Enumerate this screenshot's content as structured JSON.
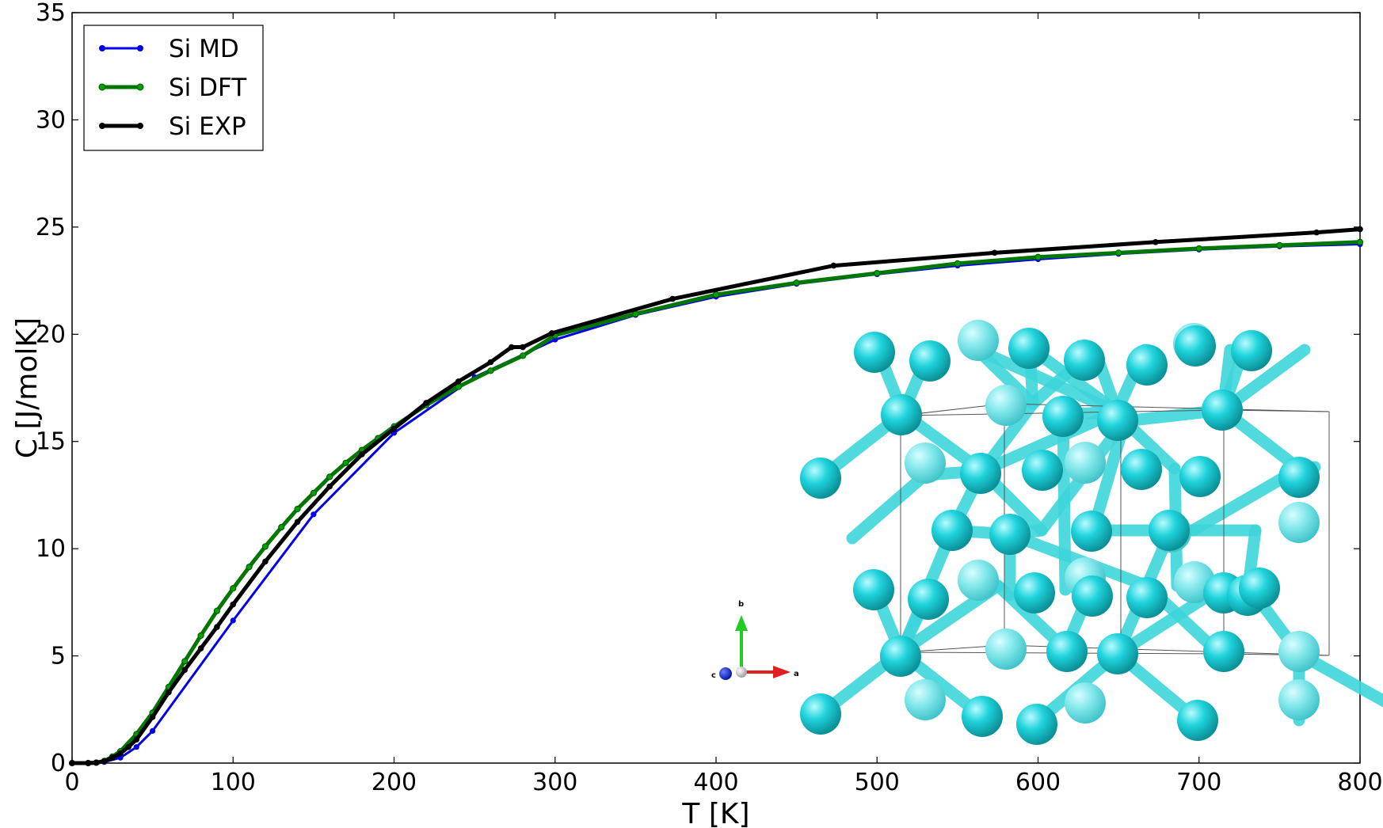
{
  "chart_data": {
    "type": "line",
    "xlabel": "T [K]",
    "ylabel": "C [J/molK]",
    "xlim": [
      0,
      800
    ],
    "ylim": [
      0,
      35
    ],
    "x_ticks": [
      "0",
      "100",
      "200",
      "300",
      "400",
      "500",
      "600",
      "700",
      "800"
    ],
    "y_ticks": [
      "0",
      "5",
      "10",
      "15",
      "20",
      "25",
      "30",
      "35"
    ],
    "grid": false,
    "legend_position": "top-left",
    "series": [
      {
        "name": "Si MD",
        "color": "#0000ee",
        "points": [
          [
            0,
            0
          ],
          [
            10,
            0
          ],
          [
            20,
            0.05
          ],
          [
            30,
            0.25
          ],
          [
            40,
            0.75
          ],
          [
            50,
            1.5
          ],
          [
            100,
            6.65
          ],
          [
            150,
            11.6
          ],
          [
            200,
            15.4
          ],
          [
            250,
            18.0
          ],
          [
            300,
            19.75
          ],
          [
            350,
            20.9
          ],
          [
            400,
            21.75
          ],
          [
            450,
            22.35
          ],
          [
            500,
            22.8
          ],
          [
            550,
            23.2
          ],
          [
            600,
            23.5
          ],
          [
            650,
            23.75
          ],
          [
            700,
            23.95
          ],
          [
            750,
            24.1
          ],
          [
            800,
            24.2
          ]
        ]
      },
      {
        "name": "Si DFT",
        "color": "#007700",
        "points": [
          [
            0,
            0
          ],
          [
            10,
            0
          ],
          [
            15,
            0.02
          ],
          [
            20,
            0.1
          ],
          [
            25,
            0.3
          ],
          [
            30,
            0.55
          ],
          [
            40,
            1.35
          ],
          [
            50,
            2.35
          ],
          [
            60,
            3.55
          ],
          [
            70,
            4.75
          ],
          [
            80,
            5.95
          ],
          [
            90,
            7.1
          ],
          [
            100,
            8.15
          ],
          [
            110,
            9.15
          ],
          [
            120,
            10.1
          ],
          [
            130,
            11.0
          ],
          [
            140,
            11.85
          ],
          [
            150,
            12.6
          ],
          [
            160,
            13.35
          ],
          [
            170,
            14.0
          ],
          [
            180,
            14.6
          ],
          [
            190,
            15.15
          ],
          [
            200,
            15.7
          ],
          [
            220,
            16.7
          ],
          [
            240,
            17.55
          ],
          [
            260,
            18.3
          ],
          [
            280,
            19.0
          ],
          [
            300,
            19.95
          ],
          [
            350,
            20.95
          ],
          [
            400,
            21.85
          ],
          [
            450,
            22.4
          ],
          [
            500,
            22.85
          ],
          [
            550,
            23.3
          ],
          [
            600,
            23.6
          ],
          [
            650,
            23.8
          ],
          [
            700,
            24.0
          ],
          [
            750,
            24.15
          ],
          [
            800,
            24.3
          ]
        ]
      },
      {
        "name": "Si EXP",
        "color": "#000000",
        "points": [
          [
            0,
            0
          ],
          [
            10,
            0
          ],
          [
            15,
            0.02
          ],
          [
            20,
            0.08
          ],
          [
            25,
            0.25
          ],
          [
            30,
            0.45
          ],
          [
            35,
            0.75
          ],
          [
            40,
            1.1
          ],
          [
            50,
            2.15
          ],
          [
            60,
            3.3
          ],
          [
            70,
            4.35
          ],
          [
            80,
            5.35
          ],
          [
            90,
            6.35
          ],
          [
            100,
            7.4
          ],
          [
            120,
            9.4
          ],
          [
            140,
            11.25
          ],
          [
            160,
            12.9
          ],
          [
            180,
            14.4
          ],
          [
            200,
            15.6
          ],
          [
            220,
            16.8
          ],
          [
            240,
            17.8
          ],
          [
            260,
            18.7
          ],
          [
            273,
            19.4
          ],
          [
            280,
            19.4
          ],
          [
            298,
            20.05
          ],
          [
            373,
            21.65
          ],
          [
            473,
            23.2
          ],
          [
            573,
            23.8
          ],
          [
            673,
            24.3
          ],
          [
            773,
            24.75
          ],
          [
            800,
            24.9
          ]
        ]
      }
    ]
  },
  "inset": {
    "atom_color": "#1fd3dc",
    "bond_color": "#3ed6db",
    "axis_labels": {
      "a": "a",
      "b": "b",
      "c": "c"
    }
  }
}
